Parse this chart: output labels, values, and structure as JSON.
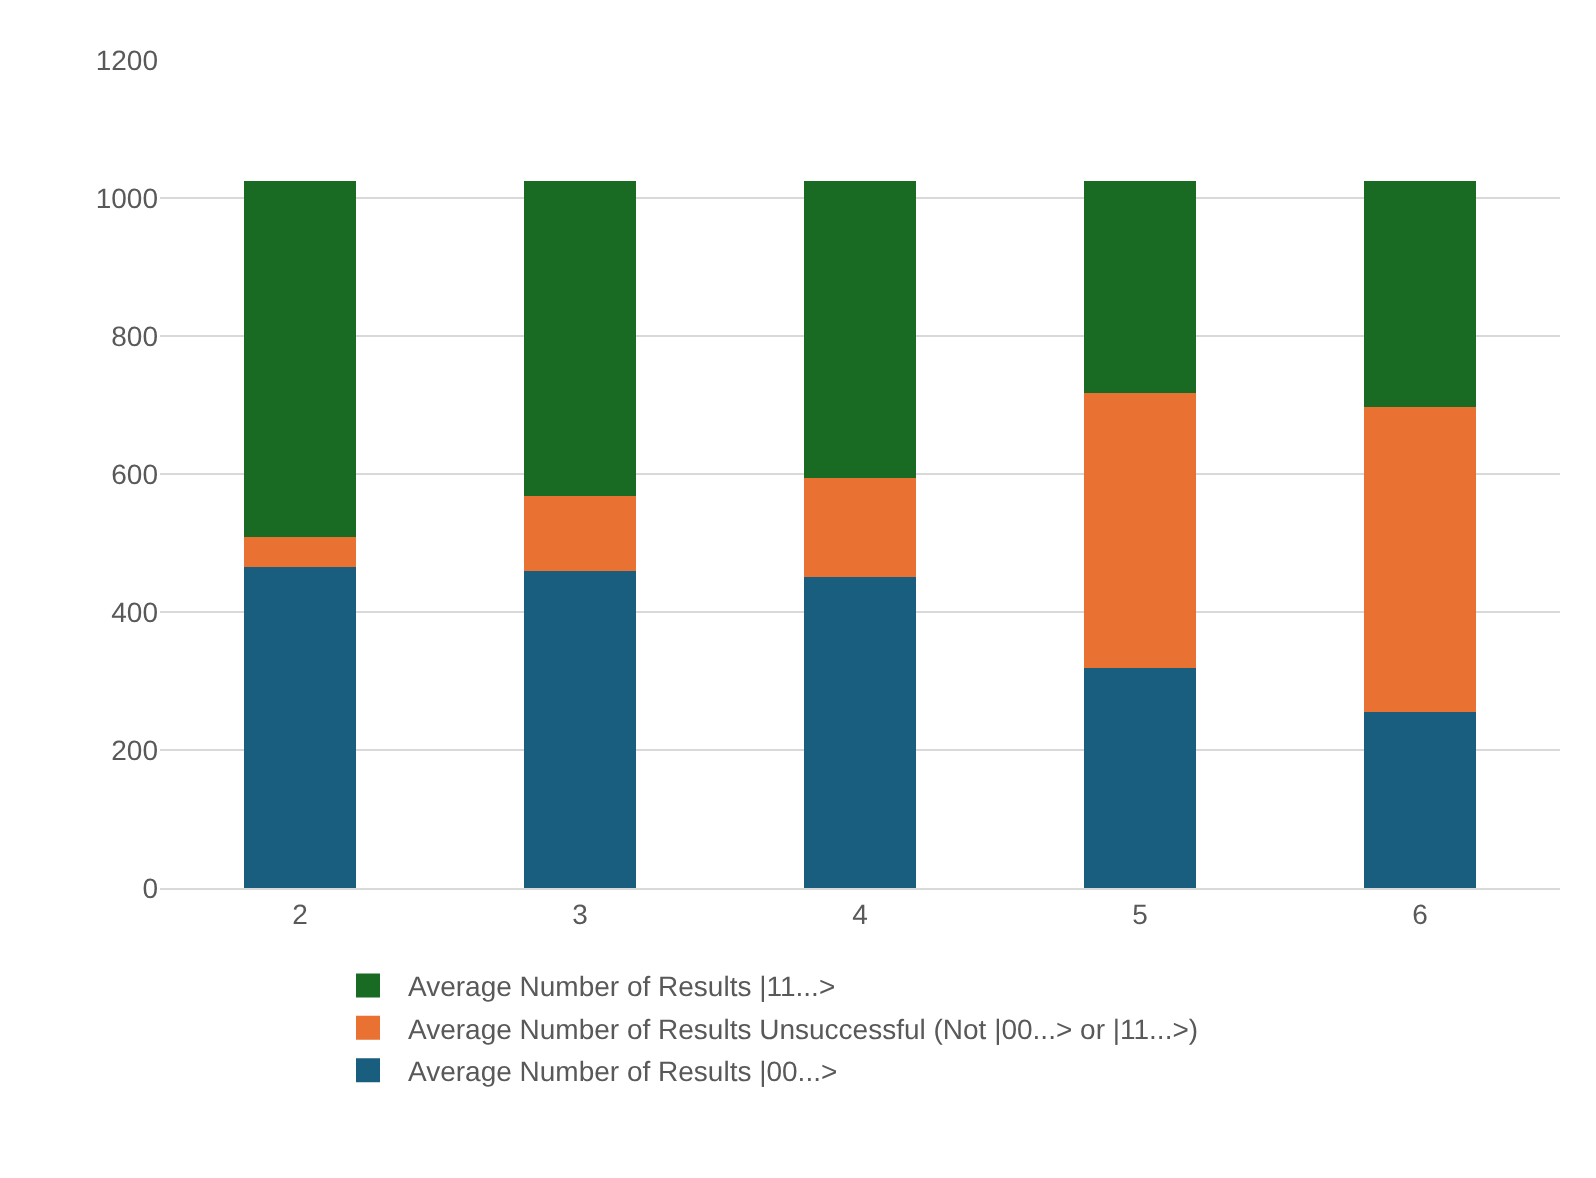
{
  "chart_data": {
    "type": "bar",
    "stacked": true,
    "categories": [
      "2",
      "3",
      "4",
      "5",
      "6"
    ],
    "series": [
      {
        "name": "Average Number of Results |00...>",
        "color": "#195e7f",
        "values": [
          465,
          459,
          451,
          319,
          255
        ]
      },
      {
        "name": "Average Number of Results Unsuccessful (Not |00...> or |11...>)",
        "color": "#e97132",
        "values": [
          44,
          109,
          143,
          398,
          442
        ]
      },
      {
        "name": "Average Number of Results |11...>",
        "color": "#196b24",
        "values": [
          515,
          456,
          430,
          307,
          327
        ]
      }
    ],
    "ylim": [
      0,
      1200
    ],
    "yticks": [
      0,
      200,
      400,
      600,
      800,
      1000,
      1200
    ],
    "grid": "y",
    "legend": "bottom"
  }
}
